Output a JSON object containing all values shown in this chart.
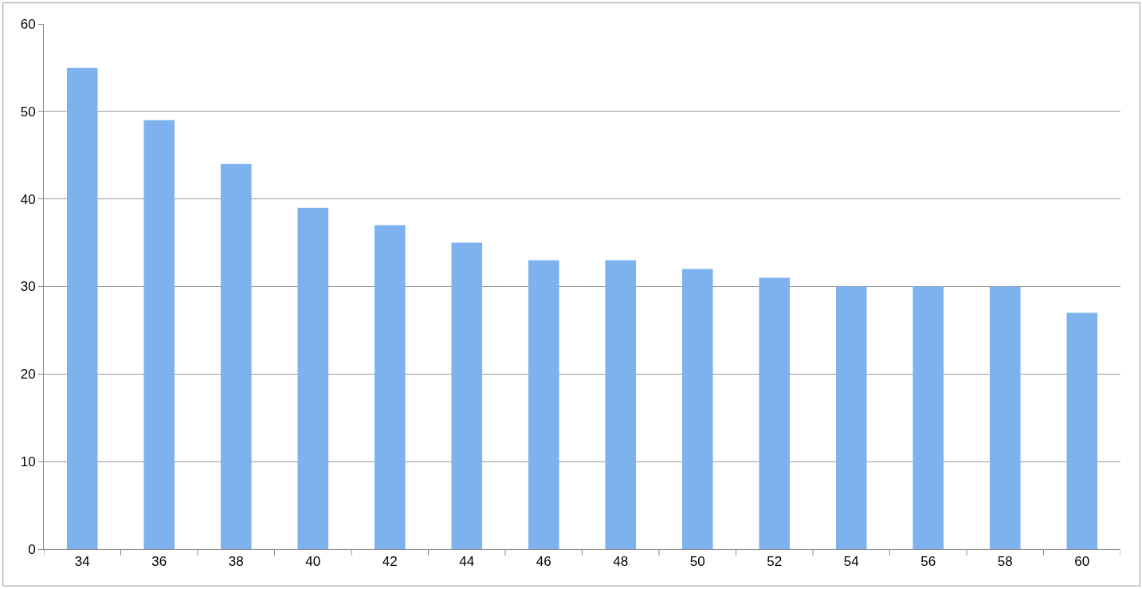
{
  "chart_data": {
    "type": "bar",
    "categories": [
      "34",
      "36",
      "38",
      "40",
      "42",
      "44",
      "46",
      "48",
      "50",
      "52",
      "54",
      "56",
      "58",
      "60"
    ],
    "values": [
      55,
      49,
      44,
      39,
      37,
      35,
      33,
      33,
      32,
      31,
      30,
      30,
      30,
      27
    ],
    "color": "#7db2ee",
    "ylim": [
      0,
      60
    ],
    "yticks": [
      0,
      10,
      20,
      30,
      40,
      50,
      60
    ],
    "grid": "y",
    "legend": false
  }
}
